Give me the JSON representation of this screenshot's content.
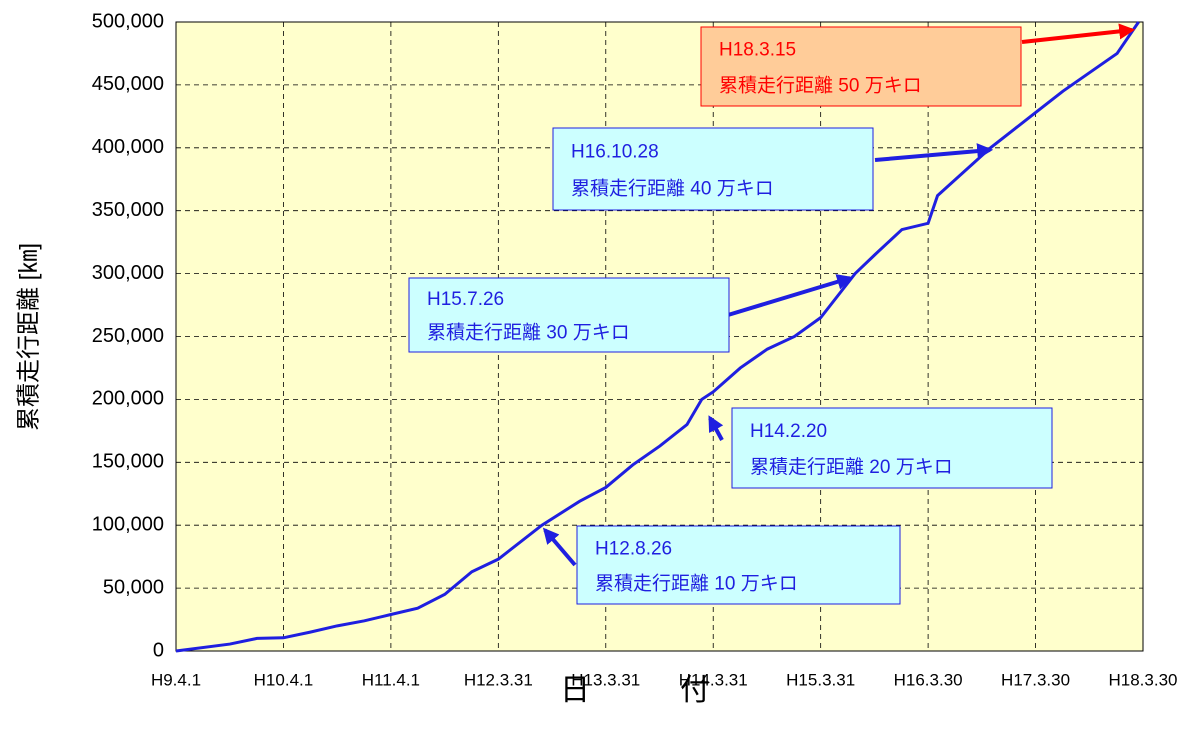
{
  "chart_data": {
    "type": "line",
    "ylabel": "累積走行距離 [㎞]",
    "xlabel": "日　　　付",
    "x": [
      "H9.4.1",
      "H9.10.1",
      "H10.1.1",
      "H10.4.1",
      "H10.7.1",
      "H10.10.1",
      "H11.1.1",
      "H11.4.1",
      "H11.7.1",
      "H11.10.1",
      "H12.1.1",
      "H12.3.31",
      "H12.8.26",
      "H13.1.1",
      "H13.3.31",
      "H13.7.1",
      "H13.10.1",
      "H14.1.1",
      "H14.2.20",
      "H14.3.31",
      "H14.7.1",
      "H14.10.1",
      "H15.1.1",
      "H15.3.31",
      "H15.7.26",
      "H15.10.1",
      "H16.1.1",
      "H16.3.30",
      "H16.5.1",
      "H16.10.28",
      "H17.3.30",
      "H17.7.1",
      "H17.10.1",
      "H18.1.1",
      "H18.3.15"
    ],
    "series": [
      {
        "color": "#1f1fe0",
        "values": [
          0,
          5500,
          10000,
          10500,
          15000,
          20000,
          24000,
          29000,
          34000,
          45000,
          63000,
          73000,
          100000,
          119000,
          130000,
          148000,
          163000,
          180000,
          200000,
          206000,
          225000,
          240000,
          250000,
          265000,
          300000,
          315000,
          335000,
          340000,
          362000,
          400000,
          428000,
          445000,
          460000,
          475000,
          500000
        ]
      }
    ],
    "xlim": [
      "H9.4.1",
      "H18.3.30"
    ],
    "xticks": [
      "H9.4.1",
      "H10.4.1",
      "H11.4.1",
      "H12.3.31",
      "H13.3.31",
      "H14.3.31",
      "H15.3.31",
      "H16.3.30",
      "H17.3.30",
      "H18.3.30"
    ],
    "ylim": [
      0,
      500000
    ],
    "yticks": [
      0,
      {
        "value": 50000,
        "label": "50,000"
      },
      {
        "value": 100000,
        "label": "100,000"
      },
      {
        "value": 150000,
        "label": "150,000"
      },
      {
        "value": 200000,
        "label": "200,000"
      },
      {
        "value": 250000,
        "label": "250,000"
      },
      {
        "value": 300000,
        "label": "300,000"
      },
      {
        "value": 350000,
        "label": "350,000"
      },
      {
        "value": 400000,
        "label": "400,000"
      },
      {
        "value": 450000,
        "label": "450,000"
      },
      {
        "value": 500000,
        "label": "500,000"
      }
    ],
    "grid": true,
    "annotations": [
      {
        "date": "H12.8.26",
        "text": "累積走行距離 10 万キロ"
      },
      {
        "date": "H14.2.20",
        "text": "累積走行距離 20 万キロ"
      },
      {
        "date": "H15.7.26",
        "text": "累積走行距離 30 万キロ"
      },
      {
        "date": "H16.10.28",
        "text": "累積走行距離 40 万キロ"
      },
      {
        "date": "H18.3.15",
        "text": "累積走行距離 50 万キロ"
      }
    ]
  }
}
